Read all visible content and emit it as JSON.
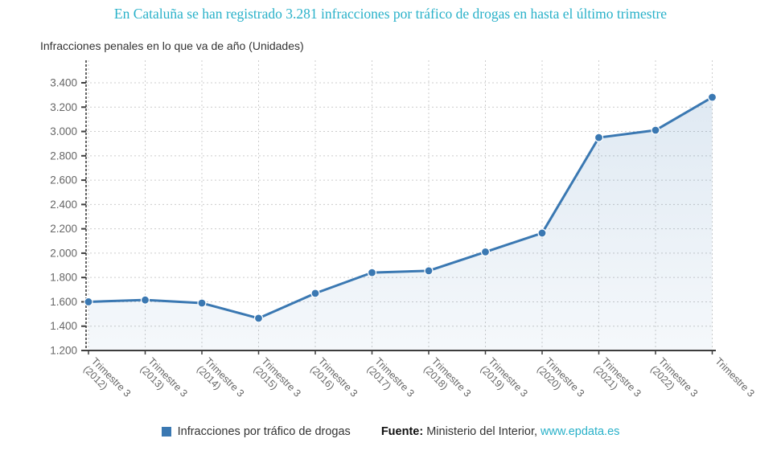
{
  "title": "En Cataluña se han registrado 3.281 infracciones por tráfico de drogas en hasta el último trimestre",
  "subtitle": "Infracciones penales en lo que va de año (Unidades)",
  "legend": {
    "label": "Infracciones por tráfico de drogas"
  },
  "source": {
    "prefix": "Fuente:",
    "text": "Ministerio del Interior,",
    "link": "www.epdata.es"
  },
  "colors": {
    "title": "#29b1c9",
    "line": "#3a78b2",
    "marker": "#3a78b2",
    "area_top": "rgba(58,120,178,0.16)",
    "area_bottom": "rgba(58,120,178,0.05)",
    "grid": "#cccccc",
    "axis": "#3d3d3d",
    "tick_label": "#666666",
    "text": "#333333",
    "link": "#29b1c9"
  },
  "chart_data": {
    "type": "area",
    "title": "En Cataluña se han registrado 3.281 infracciones por tráfico de drogas en hasta el último trimestre",
    "subtitle": "Infracciones penales en lo que va de año (Unidades)",
    "series_name": "Infracciones por tráfico de drogas",
    "categories": [
      "Trimestre 3 (2012)",
      "Trimestre 3 (2013)",
      "Trimestre 3 (2014)",
      "Trimestre 3 (2015)",
      "Trimestre 3 (2016)",
      "Trimestre 3 (2017)",
      "Trimestre 3 (2018)",
      "Trimestre 3 (2019)",
      "Trimestre 3 (2020)",
      "Trimestre 3 (2021)",
      "Trimestre 3 (2022)",
      "Trimestre 3"
    ],
    "values": [
      1600,
      1615,
      1590,
      1465,
      1670,
      1840,
      1855,
      2010,
      2165,
      2950,
      3010,
      3281
    ],
    "xlabel": "",
    "ylabel": "",
    "ylim": [
      1200,
      3400
    ],
    "ytick_step": 200,
    "yticks": [
      1200,
      1400,
      1600,
      1800,
      2000,
      2200,
      2400,
      2600,
      2800,
      3000,
      3200,
      3400
    ],
    "grid": true,
    "grid_style": "dotted",
    "x_label_rotation": 45,
    "legend_position": "bottom",
    "marker": "circle"
  }
}
